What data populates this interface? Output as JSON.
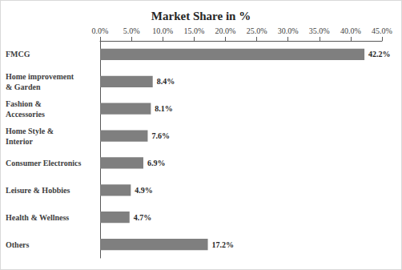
{
  "chart_data": {
    "type": "bar",
    "orientation": "horizontal",
    "title": "Market Share in %",
    "categories": [
      "FMCG",
      "Home improvement & Garden",
      "Fashion & Accessories",
      "Home Style & Interior",
      "Consumer Electronics",
      "Leisure & Hobbies",
      "Health & Wellness",
      "Others"
    ],
    "values": [
      42.2,
      8.4,
      8.1,
      7.6,
      6.9,
      4.9,
      4.7,
      17.2
    ],
    "value_labels": [
      "42.2%",
      "8.4%",
      "8.1%",
      "7.6%",
      "6.9%",
      "4.9%",
      "4.7%",
      "17.2%"
    ],
    "data_labels": true,
    "color": "#7f7f7f",
    "xlim": [
      0,
      45
    ],
    "xticks": [
      {
        "value": 0,
        "label": "0.0%"
      },
      {
        "value": 5,
        "label": "5.0%"
      },
      {
        "value": 10,
        "label": "10.0%"
      },
      {
        "value": 15,
        "label": "15.0%"
      },
      {
        "value": 20,
        "label": "20.0%"
      },
      {
        "value": 25,
        "label": "25.0%"
      },
      {
        "value": 30,
        "label": "30.0%"
      },
      {
        "value": 35,
        "label": "35.0%"
      },
      {
        "value": 40,
        "label": "40.0%"
      },
      {
        "value": 45,
        "label": "45.0%"
      }
    ],
    "grid": false
  }
}
